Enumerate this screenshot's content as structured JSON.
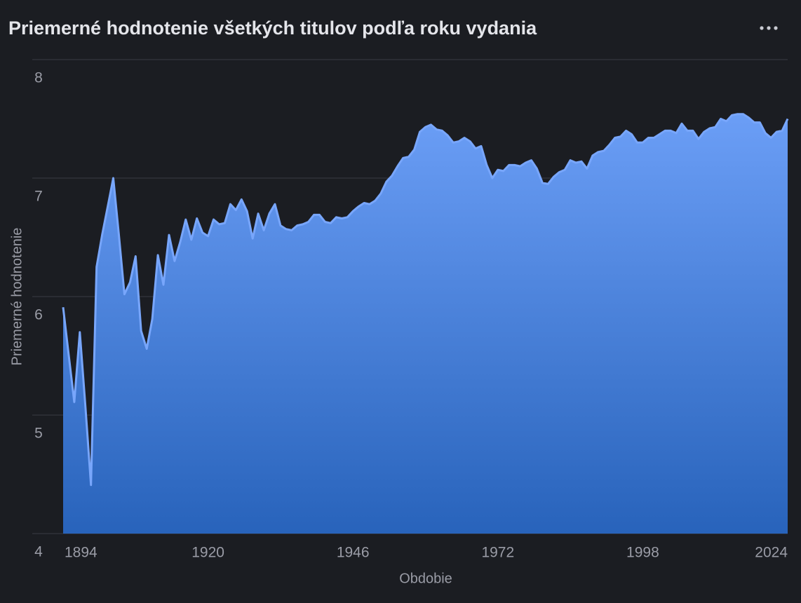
{
  "chart_data": {
    "type": "area",
    "title": "Priemerné hodnotenie všetkých titulov podľa roku vydania",
    "x_label": "Obdobie",
    "y_label": "Priemerné hodnotenie",
    "xlim": [
      1894,
      2024
    ],
    "xticks": [
      1894,
      1920,
      1946,
      1972,
      1998,
      2024
    ],
    "ylim": [
      4,
      8
    ],
    "yticks": [
      4,
      5,
      6,
      7,
      8
    ],
    "grid": true,
    "series": [
      {
        "name": "Priemerné hodnotenie",
        "color": "#78a6fb",
        "x": [
          1894,
          1895,
          1896,
          1897,
          1898,
          1899,
          1900,
          1901,
          1902,
          1903,
          1904,
          1905,
          1906,
          1907,
          1908,
          1909,
          1910,
          1911,
          1912,
          1913,
          1914,
          1915,
          1916,
          1917,
          1918,
          1919,
          1920,
          1921,
          1922,
          1923,
          1924,
          1925,
          1926,
          1927,
          1928,
          1929,
          1930,
          1931,
          1932,
          1933,
          1934,
          1935,
          1936,
          1937,
          1938,
          1939,
          1940,
          1941,
          1942,
          1943,
          1944,
          1945,
          1946,
          1947,
          1948,
          1949,
          1950,
          1951,
          1952,
          1953,
          1954,
          1955,
          1956,
          1957,
          1958,
          1959,
          1960,
          1961,
          1962,
          1963,
          1964,
          1965,
          1966,
          1967,
          1968,
          1969,
          1970,
          1971,
          1972,
          1973,
          1974,
          1975,
          1976,
          1977,
          1978,
          1979,
          1980,
          1981,
          1982,
          1983,
          1984,
          1985,
          1986,
          1987,
          1988,
          1989,
          1990,
          1991,
          1992,
          1993,
          1994,
          1995,
          1996,
          1997,
          1998,
          1999,
          2000,
          2001,
          2002,
          2003,
          2004,
          2005,
          2006,
          2007,
          2008,
          2009,
          2010,
          2011,
          2012,
          2013,
          2014,
          2015,
          2016,
          2017,
          2018,
          2019,
          2020,
          2021,
          2022,
          2023,
          2024
        ],
        "values": [
          5.91,
          5.51,
          5.11,
          5.7,
          5.07,
          4.41,
          6.25,
          6.52,
          6.76,
          7.0,
          6.52,
          6.02,
          6.12,
          6.34,
          5.71,
          5.56,
          5.81,
          6.35,
          6.1,
          6.52,
          6.3,
          6.46,
          6.65,
          6.48,
          6.66,
          6.54,
          6.51,
          6.65,
          6.61,
          6.62,
          6.78,
          6.73,
          6.82,
          6.72,
          6.49,
          6.7,
          6.56,
          6.7,
          6.78,
          6.6,
          6.57,
          6.56,
          6.6,
          6.61,
          6.63,
          6.69,
          6.69,
          6.63,
          6.62,
          6.67,
          6.66,
          6.67,
          6.72,
          6.76,
          6.79,
          6.78,
          6.81,
          6.87,
          6.97,
          7.02,
          7.1,
          7.17,
          7.18,
          7.24,
          7.39,
          7.43,
          7.45,
          7.41,
          7.4,
          7.36,
          7.3,
          7.31,
          7.34,
          7.31,
          7.25,
          7.27,
          7.11,
          7.0,
          7.07,
          7.06,
          7.11,
          7.11,
          7.1,
          7.13,
          7.15,
          7.08,
          6.96,
          6.95,
          7.01,
          7.05,
          7.07,
          7.15,
          7.13,
          7.14,
          7.08,
          7.19,
          7.22,
          7.23,
          7.28,
          7.34,
          7.35,
          7.4,
          7.37,
          7.3,
          7.3,
          7.34,
          7.34,
          7.37,
          7.4,
          7.4,
          7.38,
          7.46,
          7.4,
          7.4,
          7.33,
          7.39,
          7.42,
          7.43,
          7.5,
          7.48,
          7.53,
          7.54,
          7.54,
          7.51,
          7.47,
          7.47,
          7.38,
          7.34,
          7.39,
          7.4,
          7.5
        ]
      }
    ]
  }
}
